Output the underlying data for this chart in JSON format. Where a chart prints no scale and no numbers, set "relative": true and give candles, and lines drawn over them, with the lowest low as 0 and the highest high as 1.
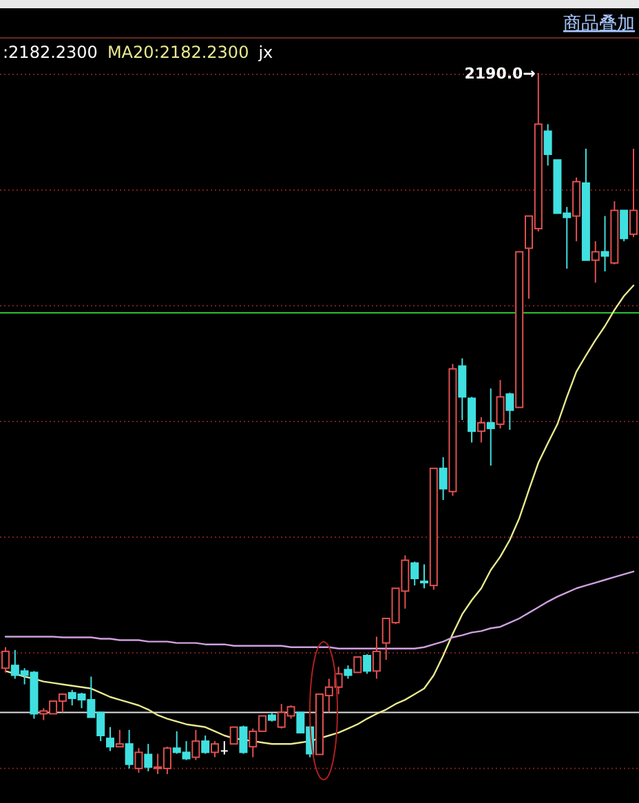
{
  "chart_data": {
    "type": "candlestick",
    "relative": true,
    "legend": "top left",
    "categories": [
      null,
      null,
      null,
      null,
      null,
      null,
      null,
      null,
      null,
      null,
      null,
      null,
      null,
      null,
      null,
      null,
      null,
      null,
      null,
      null,
      null,
      null,
      null,
      null,
      null,
      null,
      null,
      null,
      null,
      null,
      null,
      null,
      null,
      null,
      null,
      null,
      null,
      null,
      null,
      null,
      null,
      null,
      null,
      null,
      null,
      null,
      null,
      null,
      null,
      null,
      null,
      null,
      null,
      null,
      null,
      null,
      null,
      null,
      null,
      null,
      null,
      null,
      null,
      null,
      null,
      null,
      null
    ],
    "ohlc": [
      [
        0.151,
        0.181,
        0.145,
        0.175
      ],
      [
        0.155,
        0.177,
        0.136,
        0.141
      ],
      [
        0.147,
        0.151,
        0.128,
        0.141
      ],
      [
        0.145,
        0.147,
        0.079,
        0.086
      ],
      [
        0.086,
        0.094,
        0.077,
        0.09
      ],
      [
        0.086,
        0.104,
        0.086,
        0.104
      ],
      [
        0.104,
        0.114,
        0.088,
        0.114
      ],
      [
        0.116,
        0.12,
        0.098,
        0.108
      ],
      [
        0.114,
        0.116,
        0.094,
        0.106
      ],
      [
        0.106,
        0.139,
        0.081,
        0.081
      ],
      [
        0.088,
        0.088,
        0.047,
        0.055
      ],
      [
        0.051,
        0.067,
        0.033,
        0.039
      ],
      [
        0.039,
        0.063,
        0.039,
        0.043
      ],
      [
        0.043,
        0.063,
        0.008,
        0.014
      ],
      [
        0.008,
        0.037,
        0.002,
        0.031
      ],
      [
        0.028,
        0.043,
        0.004,
        0.01
      ],
      [
        0.008,
        0.029,
        0,
        0.01
      ],
      [
        0.008,
        0.039,
        0,
        0.037
      ],
      [
        0.037,
        0.061,
        0.029,
        0.031
      ],
      [
        0.031,
        0.047,
        0.02,
        0.022
      ],
      [
        0.024,
        0.063,
        0.02,
        0.047
      ],
      [
        0.047,
        0.055,
        0.029,
        0.031
      ],
      [
        0.031,
        0.047,
        0.024,
        0.043
      ],
      [
        0.033,
        0.047,
        0.028,
        0.033
      ],
      [
        0.043,
        0.067,
        0.043,
        0.067
      ],
      [
        0.067,
        0.069,
        0.029,
        0.031
      ],
      [
        0.039,
        0.065,
        0.024,
        0.061
      ],
      [
        0.061,
        0.083,
        0.061,
        0.083
      ],
      [
        0.084,
        0.088,
        0.075,
        0.077
      ],
      [
        0.067,
        0.1,
        0.065,
        0.088
      ],
      [
        0.083,
        0.098,
        0.079,
        0.096
      ],
      [
        0.088,
        0.088,
        0.059,
        0.059
      ],
      [
        0.067,
        0.069,
        0.024,
        0.029
      ],
      [
        0.028,
        0.114,
        0.028,
        0.114
      ],
      [
        0.112,
        0.136,
        0.088,
        0.124
      ],
      [
        0.124,
        0.153,
        0.114,
        0.143
      ],
      [
        0.149,
        0.155,
        0.136,
        0.141
      ],
      [
        0.145,
        0.167,
        0.145,
        0.167
      ],
      [
        0.169,
        0.171,
        0.143,
        0.147
      ],
      [
        0.147,
        0.196,
        0.136,
        0.175
      ],
      [
        0.187,
        0.222,
        0.163,
        0.222
      ],
      [
        0.216,
        0.265,
        0.214,
        0.265
      ],
      [
        0.261,
        0.312,
        0.236,
        0.305
      ],
      [
        0.301,
        0.303,
        0.269,
        0.279
      ],
      [
        0.275,
        0.299,
        0.265,
        0.273
      ],
      [
        0.269,
        0.436,
        0.263,
        0.436
      ],
      [
        0.436,
        0.452,
        0.391,
        0.407
      ],
      [
        0.403,
        0.585,
        0.397,
        0.578
      ],
      [
        0.582,
        0.593,
        0.505,
        0.538
      ],
      [
        0.536,
        0.538,
        0.473,
        0.489
      ],
      [
        0.489,
        0.509,
        0.473,
        0.501
      ],
      [
        0.501,
        0.55,
        0.44,
        0.493
      ],
      [
        0.499,
        0.562,
        0.493,
        0.538
      ],
      [
        0.542,
        0.544,
        0.491,
        0.519
      ],
      [
        0.523,
        0.745,
        0.523,
        0.745
      ],
      [
        0.75,
        0.796,
        0.678,
        0.796
      ],
      [
        0.778,
        1,
        0.774,
        0.927
      ],
      [
        0.917,
        0.927,
        0.868,
        0.884
      ],
      [
        0.876,
        0.876,
        0.8,
        0.8
      ],
      [
        0.8,
        0.809,
        0.721,
        0.794
      ],
      [
        0.796,
        0.851,
        0.76,
        0.845
      ],
      [
        0.843,
        0.892,
        0.733,
        0.733
      ],
      [
        0.733,
        0.76,
        0.701,
        0.745
      ],
      [
        0.745,
        0.796,
        0.717,
        0.739
      ],
      [
        0.729,
        0.817,
        0.727,
        0.804
      ],
      [
        0.804,
        0.804,
        0.76,
        0.764
      ],
      [
        0.77,
        0.892,
        0.766,
        0.804
      ]
    ],
    "colors": [
      "#e05050",
      "#40e0e0",
      "#40e0e0",
      "#40e0e0",
      "#e05050",
      "#e05050",
      "#e05050",
      "#40e0e0",
      "#40e0e0",
      "#40e0e0",
      "#40e0e0",
      "#40e0e0",
      "#e05050",
      "#40e0e0",
      "#e05050",
      "#40e0e0",
      "#e05050",
      "#e05050",
      "#40e0e0",
      "#40e0e0",
      "#e05050",
      "#40e0e0",
      "#e05050",
      "#ffffff",
      "#e05050",
      "#40e0e0",
      "#e05050",
      "#e05050",
      "#40e0e0",
      "#e05050",
      "#e05050",
      "#40e0e0",
      "#40e0e0",
      "#e05050",
      "#e05050",
      "#e05050",
      "#40e0e0",
      "#e05050",
      "#40e0e0",
      "#e05050",
      "#e05050",
      "#e05050",
      "#e05050",
      "#40e0e0",
      "#40e0e0",
      "#e05050",
      "#40e0e0",
      "#e05050",
      "#40e0e0",
      "#40e0e0",
      "#e05050",
      "#40e0e0",
      "#e05050",
      "#40e0e0",
      "#e05050",
      "#e05050",
      "#e05050",
      "#40e0e0",
      "#40e0e0",
      "#40e0e0",
      "#e05050",
      "#40e0e0",
      "#e05050",
      "#40e0e0",
      "#e05050",
      "#40e0e0",
      "#e05050"
    ],
    "series": [
      {
        "type": "line",
        "name": "MA20:2182.2300",
        "color": "#e8e890",
        "values": [
          0.147,
          0.143,
          0.139,
          0.136,
          0.132,
          0.13,
          0.128,
          0.126,
          0.124,
          0.122,
          0.116,
          0.11,
          0.106,
          0.102,
          0.098,
          0.092,
          0.084,
          0.079,
          0.075,
          0.071,
          0.069,
          0.067,
          0.061,
          0.055,
          0.051,
          0.049,
          0.047,
          0.045,
          0.043,
          0.043,
          0.043,
          0.045,
          0.047,
          0.051,
          0.055,
          0.059,
          0.065,
          0.071,
          0.079,
          0.086,
          0.092,
          0.1,
          0.106,
          0.114,
          0.122,
          0.141,
          0.169,
          0.2,
          0.228,
          0.248,
          0.265,
          0.291,
          0.31,
          0.334,
          0.365,
          0.405,
          0.444,
          0.472,
          0.499,
          0.538,
          0.574,
          0.597,
          0.619,
          0.639,
          0.662,
          0.682,
          0.697
        ]
      },
      {
        "type": "line",
        "color": "#d0a0e0",
        "values": [
          0.196,
          0.196,
          0.196,
          0.196,
          0.196,
          0.196,
          0.195,
          0.195,
          0.195,
          0.195,
          0.193,
          0.193,
          0.191,
          0.191,
          0.191,
          0.189,
          0.189,
          0.189,
          0.187,
          0.187,
          0.187,
          0.185,
          0.185,
          0.185,
          0.183,
          0.183,
          0.183,
          0.183,
          0.183,
          0.183,
          0.181,
          0.181,
          0.181,
          0.181,
          0.181,
          0.179,
          0.179,
          0.179,
          0.179,
          0.179,
          0.179,
          0.179,
          0.179,
          0.179,
          0.181,
          0.185,
          0.189,
          0.195,
          0.198,
          0.202,
          0.204,
          0.208,
          0.21,
          0.216,
          0.222,
          0.23,
          0.238,
          0.246,
          0.253,
          0.259,
          0.265,
          0.269,
          0.273,
          0.277,
          0.281,
          0.285,
          0.289
        ]
      }
    ],
    "ref_lines": [
      {
        "axis": "y",
        "value": 0.008,
        "color": "#7a1e1e",
        "line_style": "dotted"
      },
      {
        "axis": "y",
        "value": 0.173,
        "color": "#7a1e1e",
        "line_style": "dotted"
      },
      {
        "axis": "y",
        "value": 0.338,
        "color": "#7a1e1e",
        "line_style": "dotted"
      },
      {
        "axis": "y",
        "value": 0.503,
        "color": "#7a1e1e",
        "line_style": "dotted"
      },
      {
        "axis": "y",
        "value": 0.668,
        "color": "#7a1e1e",
        "line_style": "dotted"
      },
      {
        "axis": "y",
        "value": 0.833,
        "color": "#7a1e1e",
        "line_style": "dotted"
      },
      {
        "axis": "y",
        "value": 0.998,
        "color": "#7a1e1e",
        "line_style": "dotted"
      },
      {
        "axis": "y",
        "value": 0.658,
        "color": "#33cc33"
      },
      {
        "axis": "y",
        "value": 0.088,
        "color": "#e0e0e0"
      }
    ],
    "annotations": [
      ":2182.2300",
      "jx",
      "商品叠加",
      "2190.0→"
    ]
  }
}
